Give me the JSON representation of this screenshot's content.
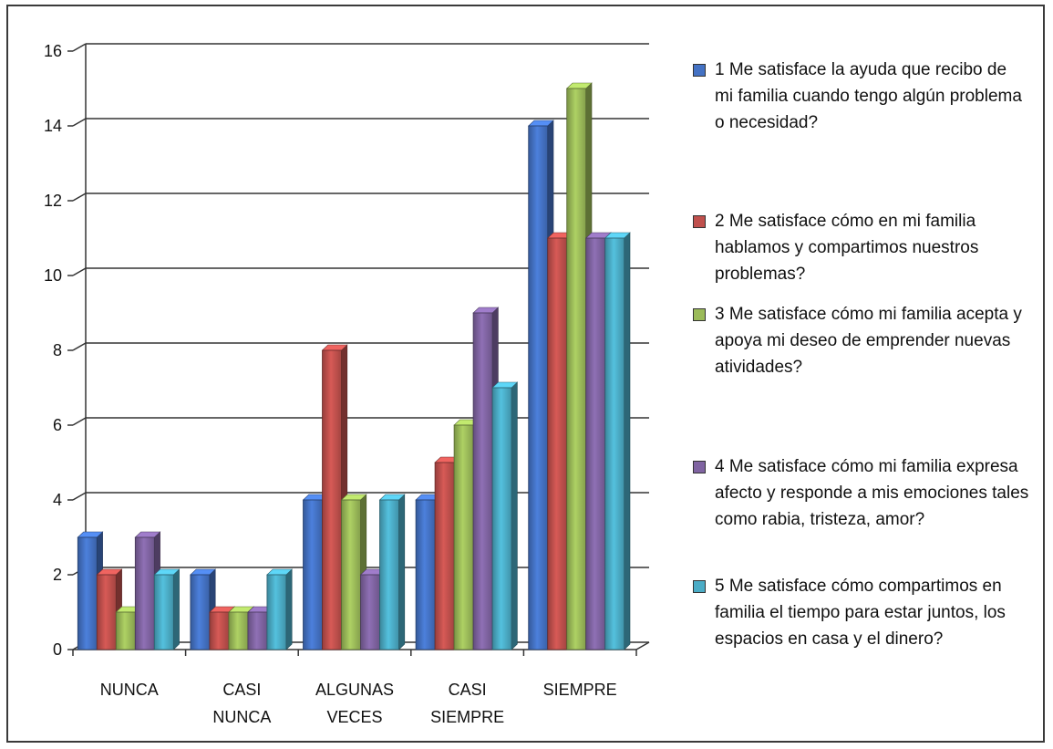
{
  "chart_data": {
    "type": "bar",
    "categories": [
      [
        "NUNCA"
      ],
      [
        "CASI",
        "NUNCA"
      ],
      [
        "ALGUNAS",
        "VECES"
      ],
      [
        "CASI",
        "SIEMPRE"
      ],
      [
        "SIEMPRE"
      ]
    ],
    "ylim": [
      0,
      16
    ],
    "yticks": [
      "0",
      "2",
      "4",
      "6",
      "8",
      "10",
      "12",
      "14",
      "16"
    ],
    "grid": true,
    "legend_position": "right",
    "series": [
      {
        "name": "1 Me satisface la ayuda que recibo de mi familia cuando tengo algún problema o necesidad?",
        "color": "#4472c4",
        "values": [
          3,
          2,
          4,
          4,
          14
        ]
      },
      {
        "name": "2 Me satisface cómo en mi familia hablamos y compartimos nuestros problemas?",
        "color": "#c0504d",
        "values": [
          2,
          1,
          8,
          5,
          11
        ]
      },
      {
        "name": "3 Me satisface cómo mi familia acepta y apoya mi deseo de emprender nuevas atividades?",
        "color": "#9bbb59",
        "values": [
          1,
          1,
          4,
          6,
          15
        ]
      },
      {
        "name": "4 Me satisface cómo mi familia expresa afecto y responde a mis emociones tales como rabia, tristeza, amor?",
        "color": "#8064a2",
        "values": [
          3,
          1,
          2,
          9,
          11
        ]
      },
      {
        "name": "5 Me satisface cómo compartimos en familia el tiempo para estar juntos, los espacios en casa y el dinero?",
        "color": "#4bacc6",
        "values": [
          2,
          2,
          4,
          7,
          11
        ]
      }
    ]
  }
}
